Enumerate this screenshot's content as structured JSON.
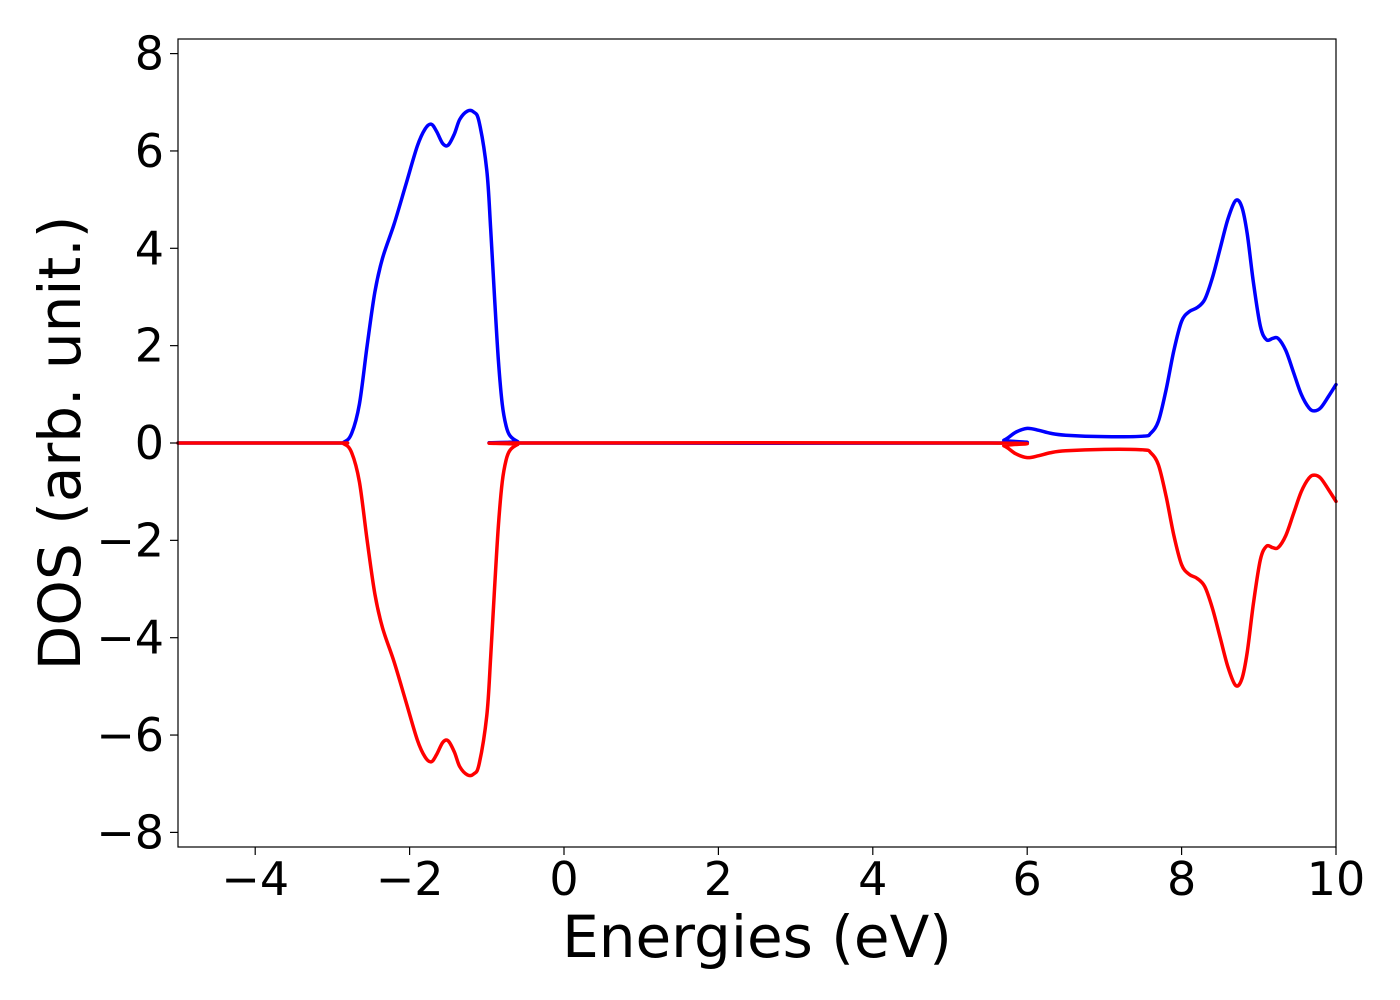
{
  "chart_data": {
    "type": "line",
    "title": "",
    "xlabel": "Energies (eV)",
    "ylabel": "DOS (arb. unit.)",
    "xlim": [
      -5,
      10
    ],
    "ylim": [
      -8.3,
      8.3
    ],
    "xticks": [
      -4,
      -2,
      0,
      2,
      4,
      6,
      8,
      10
    ],
    "xtick_labels": [
      "−4",
      "−2",
      "0",
      "2",
      "4",
      "6",
      "8",
      "10"
    ],
    "yticks": [
      8,
      6,
      4,
      2,
      0,
      -2,
      -4,
      -6,
      -8
    ],
    "ytick_labels": [
      "8",
      "6",
      "4",
      "2",
      "0",
      "−2",
      "−4",
      "−6",
      "−8"
    ],
    "grid": false,
    "legend": "none",
    "series": [
      {
        "color": "#0000ff",
        "points": [
          [
            -5.0,
            0.0
          ],
          [
            -3.0,
            0.0
          ],
          [
            -2.85,
            0.02
          ],
          [
            -2.75,
            0.2
          ],
          [
            -2.65,
            0.8
          ],
          [
            -2.55,
            2.0
          ],
          [
            -2.45,
            3.1
          ],
          [
            -2.35,
            3.8
          ],
          [
            -2.2,
            4.5
          ],
          [
            -2.05,
            5.3
          ],
          [
            -1.9,
            6.1
          ],
          [
            -1.8,
            6.45
          ],
          [
            -1.72,
            6.55
          ],
          [
            -1.65,
            6.4
          ],
          [
            -1.57,
            6.15
          ],
          [
            -1.5,
            6.12
          ],
          [
            -1.42,
            6.35
          ],
          [
            -1.35,
            6.65
          ],
          [
            -1.25,
            6.82
          ],
          [
            -1.17,
            6.8
          ],
          [
            -1.1,
            6.6
          ],
          [
            -1.0,
            5.6
          ],
          [
            -0.95,
            4.4
          ],
          [
            -0.9,
            3.0
          ],
          [
            -0.85,
            1.7
          ],
          [
            -0.8,
            0.8
          ],
          [
            -0.75,
            0.35
          ],
          [
            -0.7,
            0.15
          ],
          [
            -0.6,
            0.03
          ],
          [
            -0.5,
            0.0
          ],
          [
            5.5,
            0.0
          ],
          [
            5.7,
            0.06
          ],
          [
            5.85,
            0.22
          ],
          [
            6.0,
            0.3
          ],
          [
            6.15,
            0.26
          ],
          [
            6.3,
            0.2
          ],
          [
            6.5,
            0.16
          ],
          [
            7.0,
            0.13
          ],
          [
            7.5,
            0.14
          ],
          [
            7.6,
            0.2
          ],
          [
            7.7,
            0.45
          ],
          [
            7.8,
            1.1
          ],
          [
            7.9,
            1.9
          ],
          [
            8.0,
            2.5
          ],
          [
            8.1,
            2.7
          ],
          [
            8.2,
            2.78
          ],
          [
            8.3,
            2.95
          ],
          [
            8.4,
            3.4
          ],
          [
            8.5,
            4.0
          ],
          [
            8.6,
            4.6
          ],
          [
            8.7,
            4.98
          ],
          [
            8.78,
            4.85
          ],
          [
            8.85,
            4.3
          ],
          [
            8.93,
            3.3
          ],
          [
            9.02,
            2.4
          ],
          [
            9.1,
            2.12
          ],
          [
            9.18,
            2.15
          ],
          [
            9.25,
            2.15
          ],
          [
            9.35,
            1.9
          ],
          [
            9.45,
            1.45
          ],
          [
            9.55,
            1.0
          ],
          [
            9.65,
            0.72
          ],
          [
            9.72,
            0.66
          ],
          [
            9.8,
            0.72
          ],
          [
            9.9,
            0.95
          ],
          [
            10.0,
            1.2
          ]
        ]
      },
      {
        "color": "#ff0000",
        "points": [
          [
            -5.0,
            0.0
          ],
          [
            -3.0,
            0.0
          ],
          [
            -2.85,
            -0.02
          ],
          [
            -2.75,
            -0.2
          ],
          [
            -2.65,
            -0.8
          ],
          [
            -2.55,
            -2.0
          ],
          [
            -2.45,
            -3.1
          ],
          [
            -2.35,
            -3.8
          ],
          [
            -2.2,
            -4.5
          ],
          [
            -2.05,
            -5.3
          ],
          [
            -1.9,
            -6.1
          ],
          [
            -1.8,
            -6.45
          ],
          [
            -1.72,
            -6.55
          ],
          [
            -1.65,
            -6.4
          ],
          [
            -1.57,
            -6.15
          ],
          [
            -1.5,
            -6.12
          ],
          [
            -1.42,
            -6.35
          ],
          [
            -1.35,
            -6.65
          ],
          [
            -1.25,
            -6.82
          ],
          [
            -1.17,
            -6.8
          ],
          [
            -1.1,
            -6.6
          ],
          [
            -1.0,
            -5.6
          ],
          [
            -0.95,
            -4.4
          ],
          [
            -0.9,
            -3.0
          ],
          [
            -0.85,
            -1.7
          ],
          [
            -0.8,
            -0.8
          ],
          [
            -0.75,
            -0.35
          ],
          [
            -0.7,
            -0.15
          ],
          [
            -0.6,
            -0.03
          ],
          [
            -0.5,
            0.0
          ],
          [
            5.5,
            0.0
          ],
          [
            5.7,
            -0.06
          ],
          [
            5.85,
            -0.22
          ],
          [
            6.0,
            -0.3
          ],
          [
            6.15,
            -0.26
          ],
          [
            6.3,
            -0.2
          ],
          [
            6.5,
            -0.16
          ],
          [
            7.0,
            -0.13
          ],
          [
            7.5,
            -0.14
          ],
          [
            7.6,
            -0.2
          ],
          [
            7.7,
            -0.45
          ],
          [
            7.8,
            -1.1
          ],
          [
            7.9,
            -1.9
          ],
          [
            8.0,
            -2.5
          ],
          [
            8.1,
            -2.7
          ],
          [
            8.2,
            -2.78
          ],
          [
            8.3,
            -2.95
          ],
          [
            8.4,
            -3.4
          ],
          [
            8.5,
            -4.0
          ],
          [
            8.6,
            -4.6
          ],
          [
            8.7,
            -4.98
          ],
          [
            8.78,
            -4.85
          ],
          [
            8.85,
            -4.3
          ],
          [
            8.93,
            -3.3
          ],
          [
            9.02,
            -2.4
          ],
          [
            9.1,
            -2.12
          ],
          [
            9.18,
            -2.15
          ],
          [
            9.25,
            -2.15
          ],
          [
            9.35,
            -1.9
          ],
          [
            9.45,
            -1.45
          ],
          [
            9.55,
            -1.0
          ],
          [
            9.65,
            -0.72
          ],
          [
            9.72,
            -0.66
          ],
          [
            9.8,
            -0.72
          ],
          [
            9.9,
            -0.95
          ],
          [
            10.0,
            -1.2
          ]
        ]
      }
    ]
  }
}
